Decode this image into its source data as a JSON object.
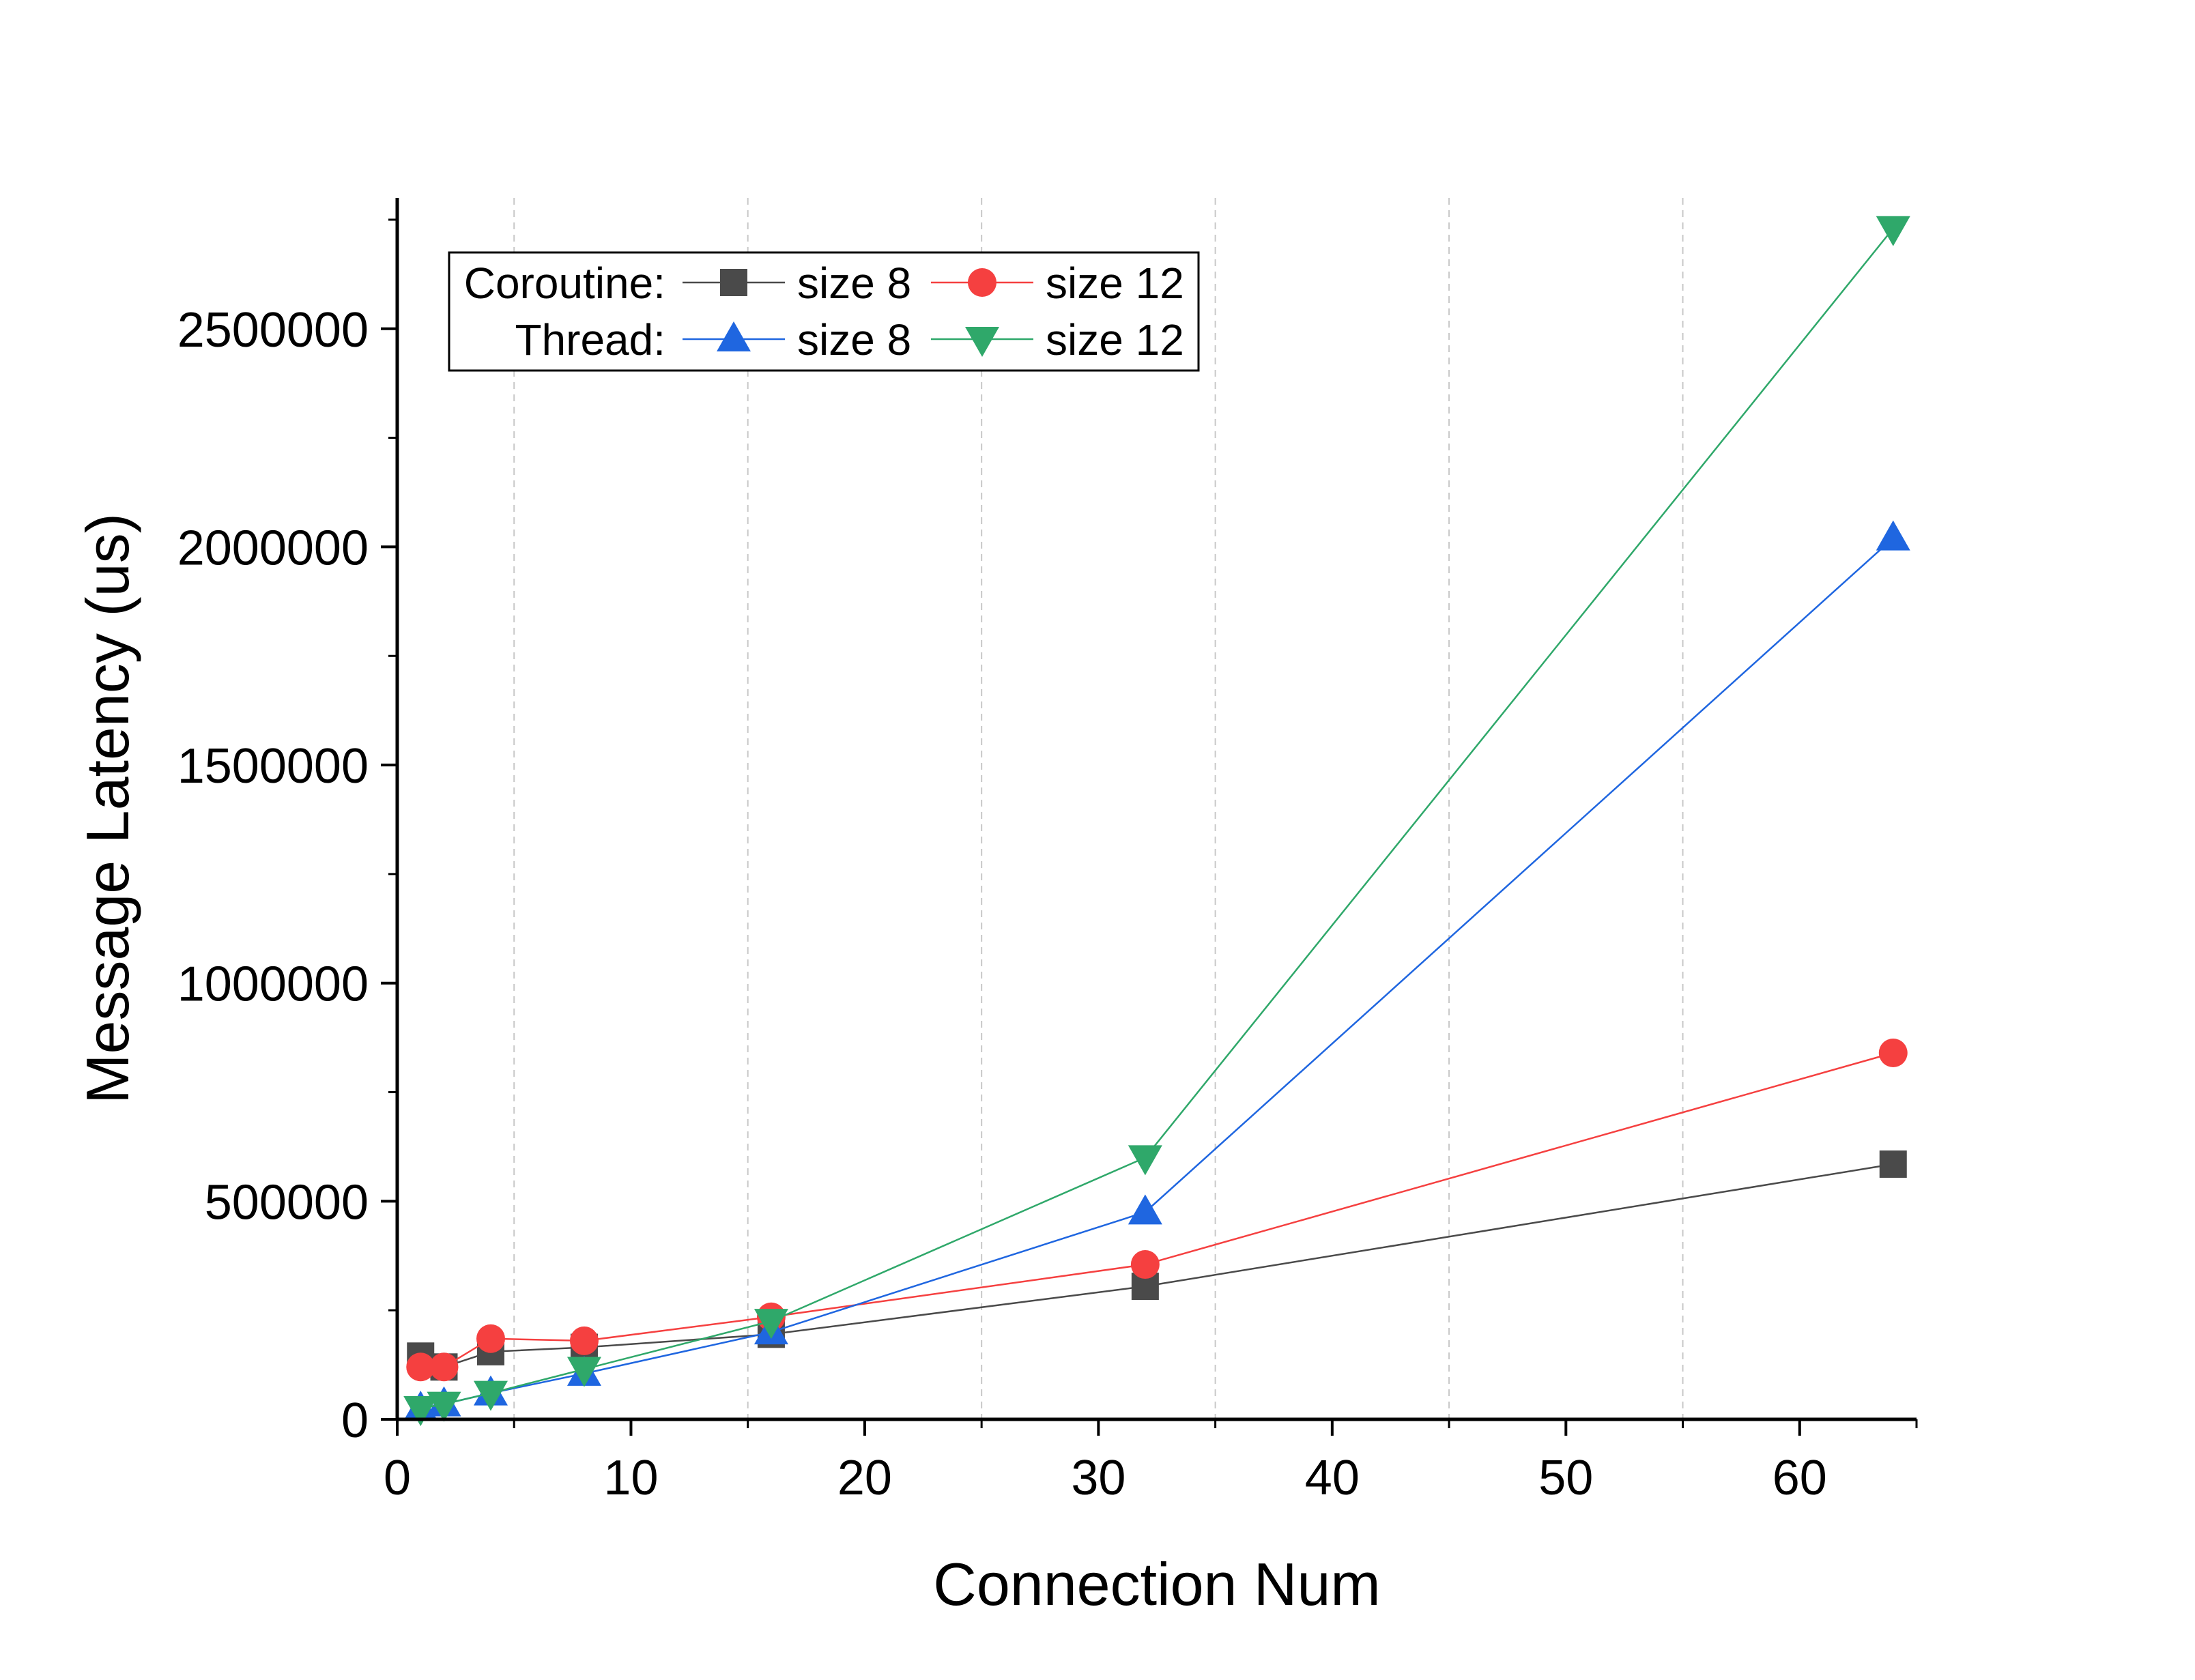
{
  "chart_data": {
    "type": "line",
    "xlabel": "Connection Num",
    "ylabel": "Message Latency (us)",
    "xlim": [
      0,
      65
    ],
    "ylim": [
      0,
      2800000
    ],
    "x_ticks": [
      0,
      10,
      20,
      30,
      40,
      50,
      60
    ],
    "x_tick_labels": [
      "0",
      "10",
      "20",
      "30",
      "40",
      "50",
      "60"
    ],
    "y_ticks": [
      0,
      500000,
      1000000,
      1500000,
      2000000,
      2500000
    ],
    "y_tick_labels": [
      "0",
      "500000",
      "1000000",
      "1500000",
      "2000000",
      "2500000"
    ],
    "x_grid": "dashed vertical lines at 5, 15, 25, 35, 45, 55",
    "legend_placement": "top-left",
    "legend_groups": [
      "Coroutine:",
      "Thread:"
    ],
    "series": [
      {
        "group": "Coroutine:",
        "name": "size 8",
        "color": "#4a4a4a",
        "marker": "square",
        "x": [
          1,
          2,
          4,
          8,
          16,
          32,
          64
        ],
        "y": [
          145000,
          120000,
          155000,
          165000,
          195000,
          305000,
          585000
        ]
      },
      {
        "group": "Coroutine:",
        "name": "size 12",
        "color": "#f54040",
        "marker": "circle",
        "x": [
          1,
          2,
          4,
          8,
          16,
          32,
          64
        ],
        "y": [
          120000,
          120000,
          185000,
          180000,
          235000,
          355000,
          840000
        ]
      },
      {
        "group": "Thread:",
        "name": "size 8",
        "color": "#1f66e0",
        "marker": "triangle-up",
        "x": [
          1,
          2,
          4,
          8,
          16,
          32,
          64
        ],
        "y": [
          25000,
          35000,
          60000,
          105000,
          200000,
          475000,
          2020000
        ]
      },
      {
        "group": "Thread:",
        "name": "size 12",
        "color": "#2fa86a",
        "marker": "triangle-down",
        "x": [
          1,
          2,
          4,
          8,
          16,
          32,
          64
        ],
        "y": [
          25000,
          35000,
          60000,
          115000,
          225000,
          600000,
          2730000
        ]
      }
    ]
  }
}
